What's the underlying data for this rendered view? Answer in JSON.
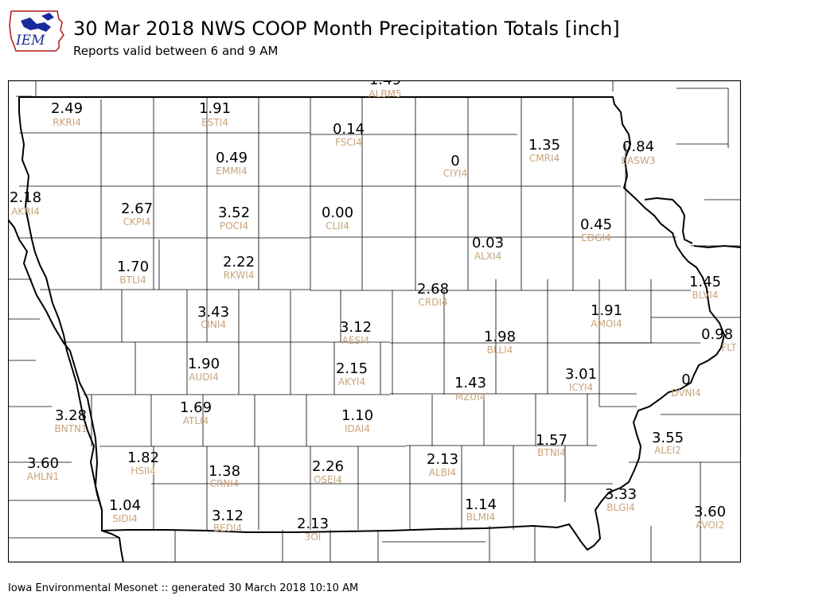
{
  "header": {
    "title": "30 Mar 2018 NWS COOP Month Precipitation Totals [inch]",
    "subtitle": "Reports valid between 6 and 9 AM",
    "logo_text": "IEM"
  },
  "footer": {
    "text": "Iowa Environmental Mesonet :: generated 30 March 2018 10:10 AM"
  },
  "colors": {
    "value": "#000000",
    "station_id": "#c9a47a",
    "logo_blue": "#1a2a9c",
    "logo_red": "#b01818"
  },
  "stations": [
    {
      "id": "ALBM5",
      "value": "1.49"
    },
    {
      "id": "RKRI4",
      "value": "2.49"
    },
    {
      "id": "ESTI4",
      "value": "1.91"
    },
    {
      "id": "FSCI4",
      "value": "0.14"
    },
    {
      "id": "EMMI4",
      "value": "0.49"
    },
    {
      "id": "CIYI4",
      "value": "0"
    },
    {
      "id": "CMRI4",
      "value": "1.35"
    },
    {
      "id": "EASW3",
      "value": "0.84"
    },
    {
      "id": "AKRI4",
      "value": "2.18"
    },
    {
      "id": "CKPI4",
      "value": "2.67"
    },
    {
      "id": "POCI4",
      "value": "3.52"
    },
    {
      "id": "CLII4",
      "value": "0.00"
    },
    {
      "id": "EDGI4",
      "value": "0.45"
    },
    {
      "id": "ALXI4",
      "value": "0.03"
    },
    {
      "id": "BTLI4",
      "value": "1.70"
    },
    {
      "id": "RKWI4",
      "value": "2.22"
    },
    {
      "id": "CRDI4",
      "value": "2.68"
    },
    {
      "id": "BLVI4",
      "value": "1.45"
    },
    {
      "id": "CINI4",
      "value": "3.43"
    },
    {
      "id": "AMOI4",
      "value": "1.91"
    },
    {
      "id": "AESI4",
      "value": "3.12"
    },
    {
      "id": "BLLI4",
      "value": "1.98"
    },
    {
      "id": "FLT",
      "value": "0.98"
    },
    {
      "id": "AUDI4",
      "value": "1.90"
    },
    {
      "id": "AKYI4",
      "value": "2.15"
    },
    {
      "id": "ICYI4",
      "value": "3.01"
    },
    {
      "id": "MZUI4",
      "value": "1.43"
    },
    {
      "id": "DVNI4",
      "value": "0"
    },
    {
      "id": "BNTN1",
      "value": "3.28"
    },
    {
      "id": "ATLI4",
      "value": "1.69"
    },
    {
      "id": "IDAI4",
      "value": "1.10"
    },
    {
      "id": "BTNI4",
      "value": "1.57"
    },
    {
      "id": "ALEI2",
      "value": "3.55"
    },
    {
      "id": "AHLN1",
      "value": "3.60"
    },
    {
      "id": "HSII4",
      "value": "1.82"
    },
    {
      "id": "CRNI4",
      "value": "1.38"
    },
    {
      "id": "OSEI4",
      "value": "2.26"
    },
    {
      "id": "ALBI4",
      "value": "2.13"
    },
    {
      "id": "BLGI4",
      "value": "3.33"
    },
    {
      "id": "SIDI4",
      "value": "1.04"
    },
    {
      "id": "BEDI4",
      "value": "3.12"
    },
    {
      "id": "3OI",
      "value": "2.13"
    },
    {
      "id": "BLMI4",
      "value": "1.14"
    },
    {
      "id": "AVOI2",
      "value": "3.60"
    }
  ]
}
